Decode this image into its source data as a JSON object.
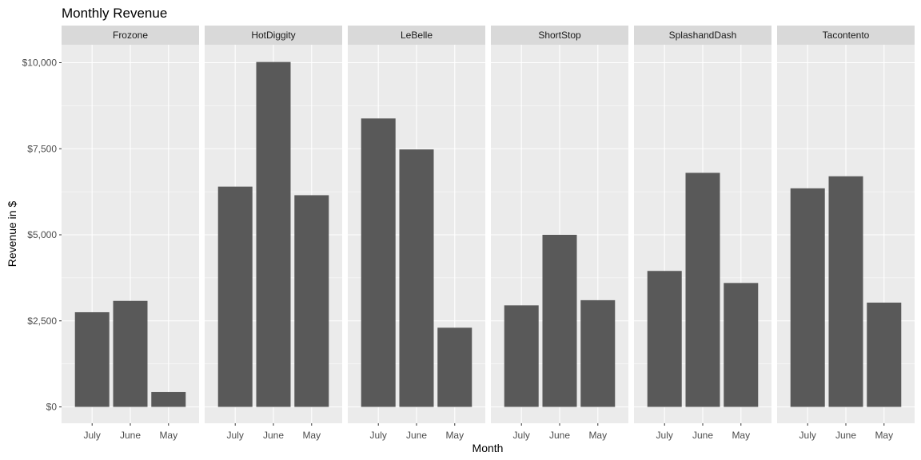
{
  "chart_data": {
    "type": "bar",
    "faceted": true,
    "title": "Monthly Revenue",
    "xlabel": "Month",
    "ylabel": "Revenue in $",
    "categories": [
      "July",
      "June",
      "May"
    ],
    "ylim": [
      0,
      10000
    ],
    "yticks": [
      0,
      2500,
      5000,
      7500,
      10000
    ],
    "ytick_labels": [
      "$0",
      "$2,500",
      "$5,000",
      "$7,500",
      "$10,000"
    ],
    "grid": true,
    "legend": "none",
    "colors": {
      "bar": "#595959",
      "panel": "#ebebeb",
      "strip": "#d9d9d9",
      "grid": "#ffffff"
    },
    "facets": [
      {
        "name": "Frozone",
        "values": [
          2750,
          3080,
          430
        ]
      },
      {
        "name": "HotDiggity",
        "values": [
          6400,
          10020,
          6150
        ]
      },
      {
        "name": "LeBelle",
        "values": [
          8380,
          7480,
          2300
        ]
      },
      {
        "name": "ShortStop",
        "values": [
          2950,
          5000,
          3100
        ]
      },
      {
        "name": "SplashandDash",
        "values": [
          3950,
          6800,
          3600
        ]
      },
      {
        "name": "Tacontento",
        "values": [
          6350,
          6700,
          3030
        ]
      }
    ]
  }
}
